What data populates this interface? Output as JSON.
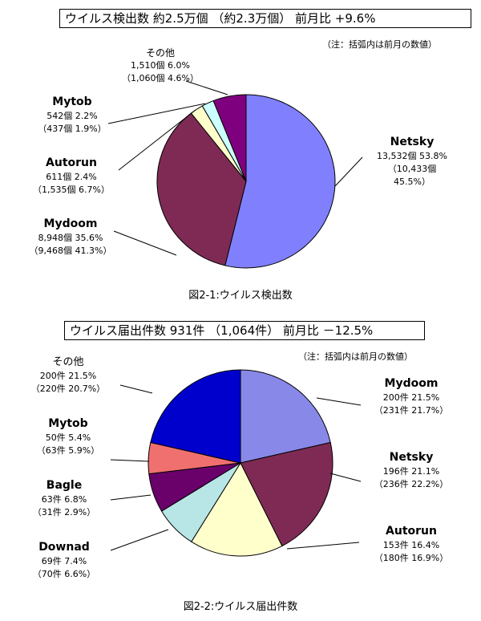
{
  "chart_data": [
    {
      "type": "pie",
      "title": "ウイルス検出数  約2.5万個 （約2.3万個）   前月比  +9.6%",
      "note": "（注：括弧内は前月の数値）",
      "caption": "図2-1:ウイルス検出数",
      "slices": [
        {
          "name": "Netsky",
          "count": "13,532個",
          "pct": 53.8,
          "pct_text": "53.8%",
          "prev_count": "（10,433個",
          "prev_pct": "45.5%）",
          "color": "#8080ff"
        },
        {
          "name": "Mydoom",
          "count": "8,948個",
          "pct": 35.6,
          "pct_text": "35.6%",
          "prev": "（9,468個 41.3%）",
          "color": "#7f2a55"
        },
        {
          "name": "Autorun",
          "count": "611個",
          "pct": 2.4,
          "pct_text": "2.4%",
          "prev": "（1,535個 6.7%）",
          "color": "#ffffcc"
        },
        {
          "name": "Mytob",
          "count": "542個",
          "pct": 2.2,
          "pct_text": "2.2%",
          "prev": "（437個 1.9%）",
          "color": "#ccffff"
        },
        {
          "name": "その他",
          "count": "1,510個",
          "pct": 6.0,
          "pct_text": "6.0%",
          "prev": "（1,060個 4.6%）",
          "color": "#7f007f"
        }
      ]
    },
    {
      "type": "pie",
      "title": "ウイルス届出件数 931件 （1,064件） 前月比 －12.5%",
      "note": "（注：括弧内は前月の数値）",
      "caption": "図2-2:ウイルス届出件数",
      "slices": [
        {
          "name": "Mydoom",
          "count": "200件",
          "pct": 21.5,
          "pct_text": "21.5%",
          "prev": "（231件 21.7%）",
          "color": "#8888e8"
        },
        {
          "name": "Netsky",
          "count": "196件",
          "pct": 21.1,
          "pct_text": "21.1%",
          "prev": "（236件 22.2%）",
          "color": "#7f2a55"
        },
        {
          "name": "Autorun",
          "count": "153件",
          "pct": 16.4,
          "pct_text": "16.4%",
          "prev": "（180件 16.9%）",
          "color": "#ffffcc"
        },
        {
          "name": "Downad",
          "count": "69件",
          "pct": 7.4,
          "pct_text": "7.4%",
          "prev": "（70件 6.6%）",
          "color": "#b8e6e6"
        },
        {
          "name": "Bagle",
          "count": "63件",
          "pct": 6.8,
          "pct_text": "6.8%",
          "prev": "（31件 2.9%）",
          "color": "#6a006a"
        },
        {
          "name": "Mytob",
          "count": "50件",
          "pct": 5.4,
          "pct_text": "5.4%",
          "prev": "（63件 5.9%）",
          "color": "#f07070"
        },
        {
          "name": "その他",
          "count": "200件",
          "pct": 21.5,
          "pct_text": "21.5%",
          "prev": "（220件 20.7%）",
          "color": "#0000cc"
        }
      ]
    }
  ]
}
